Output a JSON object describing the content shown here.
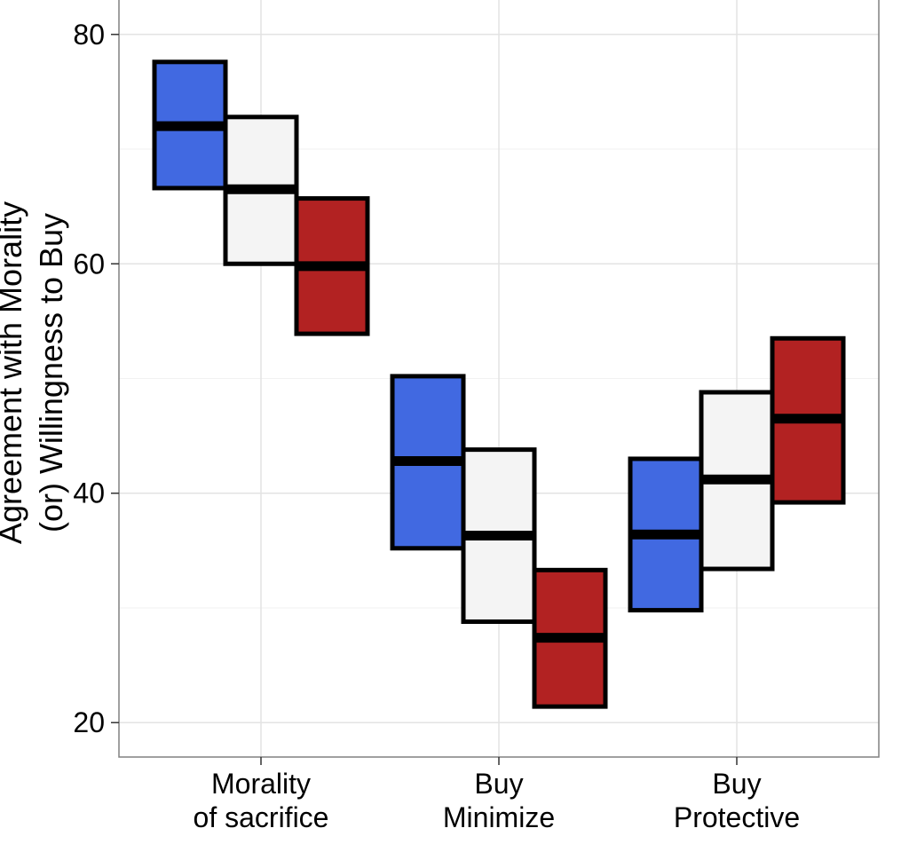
{
  "chart_data": {
    "type": "crossbar",
    "title": "",
    "ylabel": [
      "Agreement with Morality",
      "(or) Willingness to Buy"
    ],
    "xlabel": "",
    "ylim": [
      17.0,
      83.0
    ],
    "yticks": [
      20,
      40,
      60,
      80
    ],
    "ytick_labels": [
      "20",
      "40",
      "60",
      "80"
    ],
    "grid": true,
    "legend": "none",
    "categories": [
      {
        "lines": [
          "Morality",
          "of sacrifice"
        ]
      },
      {
        "lines": [
          "Buy",
          "Minimize"
        ]
      },
      {
        "lines": [
          "Buy",
          "Protective"
        ]
      }
    ],
    "series": [
      {
        "color": "#4169e1",
        "mean": [
          72.0,
          42.8,
          36.4
        ],
        "lower": [
          66.6,
          35.2,
          29.8
        ],
        "upper": [
          77.6,
          50.2,
          43.0
        ]
      },
      {
        "color": "#f4f4f4",
        "mean": [
          66.5,
          36.3,
          41.2
        ],
        "lower": [
          60.0,
          28.8,
          33.4
        ],
        "upper": [
          72.8,
          43.8,
          48.8
        ]
      },
      {
        "color": "#b22222",
        "mean": [
          59.8,
          27.4,
          46.5
        ],
        "lower": [
          53.9,
          21.4,
          39.2
        ],
        "upper": [
          65.7,
          33.3,
          53.5
        ]
      }
    ]
  }
}
